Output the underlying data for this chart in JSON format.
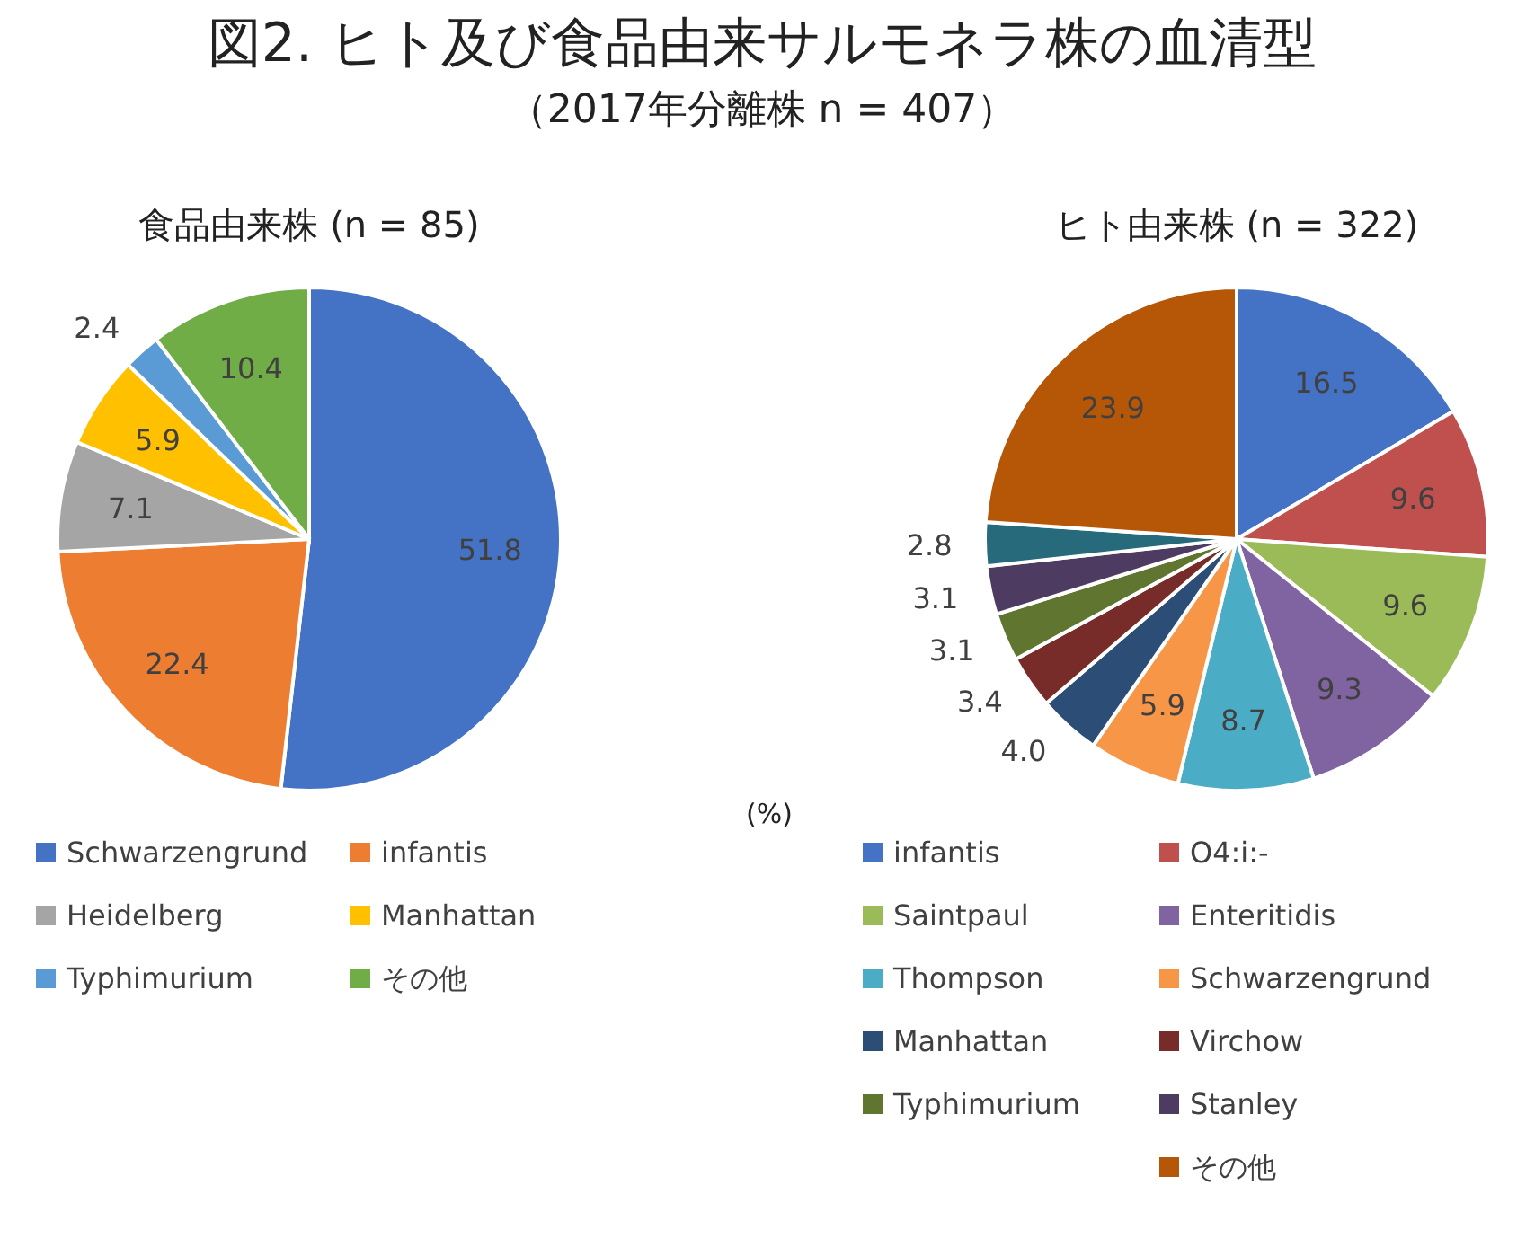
{
  "chart_data": [
    {
      "type": "pie",
      "title": "食品由来株 (n = 85)",
      "annotations": [
        "図2. ヒト及び食品由来サルモネラ株の血清型",
        "（2017年分離株 n = 407）"
      ],
      "categories": [
        "Schwarzengrund",
        "infantis",
        "Heidelberg",
        "Manhattan",
        "Typhimurium",
        "その他"
      ],
      "values": [
        51.8,
        22.4,
        7.1,
        5.9,
        2.4,
        10.4
      ],
      "colors": [
        "#4472c4",
        "#ed7d31",
        "#a5a5a5",
        "#ffc000",
        "#5b9bd5",
        "#70ad47"
      ],
      "value_labels": [
        "51.8",
        "22.4",
        "7.1",
        "5.9",
        "2.4",
        "10.4"
      ],
      "legend": "bottom"
    },
    {
      "type": "pie",
      "title": "ヒト由来株 (n = 322)",
      "annotations": [
        "(%)"
      ],
      "categories": [
        "infantis",
        "O4:i:-",
        "Saintpaul",
        "Enteritidis",
        "Thompson",
        "Schwarzengrund",
        "Manhattan",
        "Virchow",
        "Typhimurium",
        "Stanley",
        null,
        "その他"
      ],
      "values": [
        16.5,
        9.6,
        9.6,
        9.3,
        8.7,
        5.9,
        4.0,
        3.4,
        3.1,
        3.1,
        2.8,
        23.9
      ],
      "colors": [
        "#4472c4",
        "#c0504d",
        "#9bbb59",
        "#8064a2",
        "#4bacc6",
        "#f79646",
        "#2c4d75",
        "#772c2a",
        "#5f7530",
        "#4d3b62",
        "#276a7c",
        "#b65708"
      ],
      "value_labels": [
        "16.5",
        "9.6",
        "9.6",
        "9.3",
        "8.7",
        "5.9",
        "4.0",
        "3.4",
        "3.1",
        "3.1",
        "2.8",
        "23.9"
      ],
      "legend": "bottom"
    }
  ]
}
